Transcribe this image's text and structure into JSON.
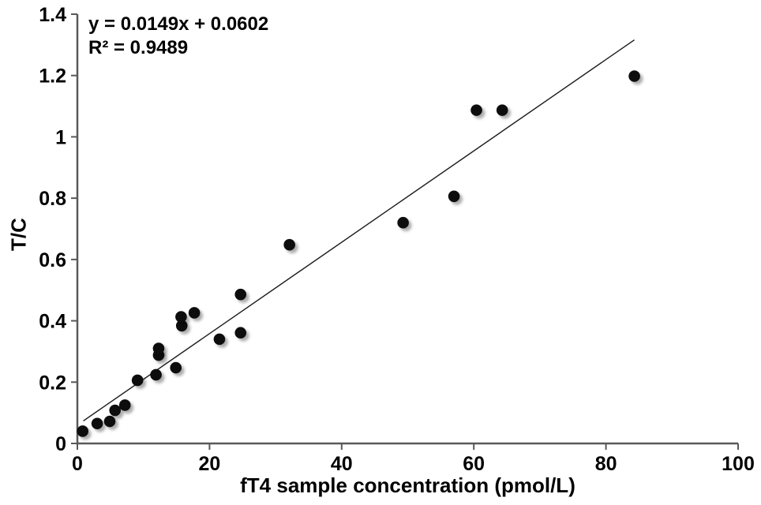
{
  "chart_data": {
    "type": "scatter",
    "title": "",
    "xlabel": "fT4 sample concentration (pmol/L)",
    "ylabel": "T/C",
    "xlim": [
      0,
      100
    ],
    "ylim": [
      0,
      1.4
    ],
    "x_ticks": [
      0,
      20,
      40,
      60,
      80,
      100
    ],
    "x_tick_labels": [
      "0",
      "20",
      "40",
      "60",
      "80",
      "100"
    ],
    "y_ticks": [
      0,
      0.2,
      0.4,
      0.6,
      0.8,
      1,
      1.2,
      1.4
    ],
    "y_tick_labels": [
      "0",
      "0.2",
      "0.4",
      "0.6",
      "0.8",
      "1",
      "1.2",
      "1.4"
    ],
    "grid": false,
    "legend_position": "none",
    "annotation": {
      "equation": "y = 0.0149x + 0.0602",
      "r_squared_label": "R² = 0.9489"
    },
    "trendline": {
      "slope": 0.0149,
      "intercept": 0.0602,
      "x_start": 0.9,
      "x_end": 84.3
    },
    "points": [
      [
        0.8,
        0.04
      ],
      [
        3.0,
        0.065
      ],
      [
        4.9,
        0.072
      ],
      [
        5.7,
        0.108
      ],
      [
        7.2,
        0.125
      ],
      [
        9.1,
        0.206
      ],
      [
        11.9,
        0.224
      ],
      [
        12.3,
        0.288
      ],
      [
        12.3,
        0.31
      ],
      [
        14.9,
        0.247
      ],
      [
        15.8,
        0.384
      ],
      [
        15.7,
        0.413
      ],
      [
        17.7,
        0.426
      ],
      [
        21.5,
        0.34
      ],
      [
        24.7,
        0.361
      ],
      [
        24.7,
        0.486
      ],
      [
        32.1,
        0.648
      ],
      [
        49.3,
        0.72
      ],
      [
        57.0,
        0.806
      ],
      [
        60.4,
        1.087
      ],
      [
        64.3,
        1.087
      ],
      [
        84.3,
        1.198
      ]
    ]
  },
  "colors": {
    "background": "#ffffff",
    "axis": "#595959",
    "tick": "#595959",
    "text": "#000000",
    "point": "#0a0a0a",
    "trendline": "#1a1a1a"
  }
}
